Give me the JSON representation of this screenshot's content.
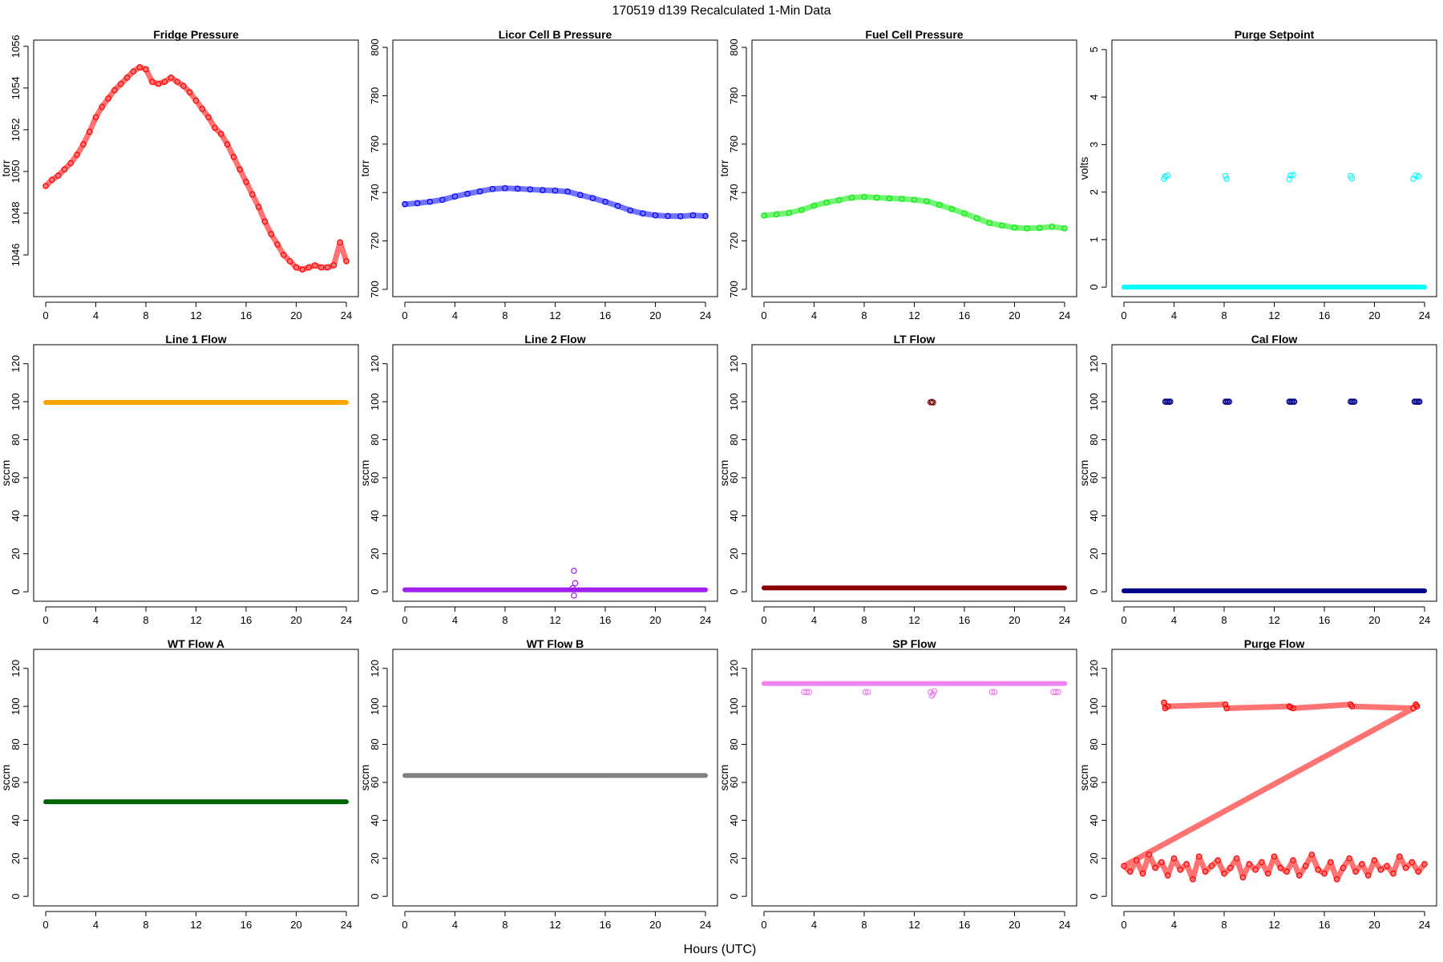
{
  "figure": {
    "title": "170519   d139   Recalculated 1-Min Data",
    "xlabel": "Hours (UTC)"
  },
  "chart_data": [
    {
      "type": "scatter",
      "title": "Fridge Pressure",
      "ylabel": "torr",
      "color": "#ff0000",
      "xlim": [
        -0.96,
        24.96
      ],
      "ylim": [
        1044,
        1056.3
      ],
      "xticks": [
        0,
        4,
        8,
        12,
        16,
        20,
        24
      ],
      "yticks": [
        1046,
        1048,
        1050,
        1052,
        1054,
        1056
      ],
      "x": [
        0,
        0.5,
        1,
        1.5,
        2,
        2.5,
        3,
        3.5,
        4,
        4.5,
        5,
        5.5,
        6,
        6.5,
        7,
        7.5,
        8,
        8.5,
        9,
        9.5,
        10,
        10.5,
        11,
        11.5,
        12,
        12.5,
        13,
        13.5,
        14,
        14.5,
        15,
        15.5,
        16,
        16.5,
        17,
        17.5,
        18,
        18.5,
        19,
        19.5,
        20,
        20.5,
        21,
        21.5,
        22,
        22.5,
        23,
        23.5,
        24
      ],
      "values": [
        1049.3,
        1049.6,
        1049.8,
        1050.1,
        1050.4,
        1050.8,
        1051.3,
        1051.9,
        1052.6,
        1053.1,
        1053.5,
        1053.9,
        1054.2,
        1054.5,
        1054.8,
        1055.0,
        1054.9,
        1054.3,
        1054.2,
        1054.3,
        1054.5,
        1054.3,
        1054.1,
        1053.8,
        1053.4,
        1053.0,
        1052.6,
        1052.1,
        1051.8,
        1051.3,
        1050.7,
        1050.1,
        1049.5,
        1048.9,
        1048.3,
        1047.6,
        1047.0,
        1046.5,
        1046.0,
        1045.7,
        1045.4,
        1045.3,
        1045.4,
        1045.5,
        1045.4,
        1045.4,
        1045.5,
        1046.6,
        1045.7
      ]
    },
    {
      "type": "scatter",
      "title": "Licor Cell B Pressure",
      "ylabel": "torr",
      "color": "#0000ff",
      "xlim": [
        -0.96,
        24.96
      ],
      "ylim": [
        697,
        803
      ],
      "xticks": [
        0,
        4,
        8,
        12,
        16,
        20,
        24
      ],
      "yticks": [
        700,
        720,
        740,
        760,
        780,
        800
      ],
      "x": [
        0,
        1,
        2,
        3,
        4,
        5,
        6,
        7,
        8,
        9,
        10,
        11,
        12,
        13,
        14,
        15,
        16,
        17,
        18,
        19,
        20,
        21,
        22,
        23,
        24
      ],
      "values": [
        735.2,
        735.6,
        736.2,
        737.0,
        738.4,
        739.5,
        740.5,
        741.5,
        741.8,
        741.6,
        741.3,
        741.0,
        740.8,
        740.4,
        739.0,
        737.7,
        736.2,
        734.5,
        732.6,
        731.4,
        730.6,
        730.3,
        730.2,
        730.6,
        730.3
      ]
    },
    {
      "type": "scatter",
      "title": "Fuel Cell Pressure",
      "ylabel": "torr",
      "color": "#00ee00",
      "xlim": [
        -0.96,
        24.96
      ],
      "ylim": [
        697,
        803
      ],
      "xticks": [
        0,
        4,
        8,
        12,
        16,
        20,
        24
      ],
      "yticks": [
        700,
        720,
        740,
        760,
        780,
        800
      ],
      "x": [
        0,
        1,
        2,
        3,
        4,
        5,
        6,
        7,
        8,
        9,
        10,
        11,
        12,
        13,
        14,
        15,
        16,
        17,
        18,
        19,
        20,
        21,
        22,
        23,
        24
      ],
      "values": [
        730.5,
        731.0,
        731.6,
        732.8,
        734.6,
        735.9,
        736.9,
        737.9,
        738.2,
        737.9,
        737.6,
        737.4,
        737.0,
        736.4,
        734.9,
        733.2,
        731.4,
        729.4,
        727.4,
        726.4,
        725.5,
        725.2,
        725.4,
        725.9,
        725.2
      ]
    },
    {
      "type": "scatter",
      "title": "Purge Setpoint",
      "ylabel": "volts",
      "color": "#00ffff",
      "xlim": [
        -0.96,
        24.96
      ],
      "ylim": [
        -0.2,
        5.2
      ],
      "xticks": [
        0,
        4,
        8,
        12,
        16,
        20,
        24
      ],
      "yticks": [
        0,
        1,
        2,
        3,
        4,
        5
      ],
      "baseline": 0,
      "baseline_range": [
        0,
        24
      ],
      "x": [
        3.2,
        3.3,
        3.5,
        8.1,
        8.2,
        13.2,
        13.3,
        13.5,
        18.1,
        18.2,
        23.1,
        23.3,
        23.5
      ],
      "values": [
        2.28,
        2.33,
        2.35,
        2.34,
        2.28,
        2.27,
        2.35,
        2.36,
        2.34,
        2.29,
        2.28,
        2.35,
        2.33
      ]
    },
    {
      "type": "scatter",
      "title": "Line 1 Flow",
      "ylabel": "sccm",
      "color": "#ffa500",
      "xlim": [
        -0.96,
        24.96
      ],
      "ylim": [
        -5,
        130
      ],
      "xticks": [
        0,
        4,
        8,
        12,
        16,
        20,
        24
      ],
      "yticks": [
        0,
        20,
        40,
        60,
        80,
        100,
        120
      ],
      "baseline": 99.6,
      "baseline_range": [
        0,
        24
      ],
      "x": [],
      "values": []
    },
    {
      "type": "scatter",
      "title": "Line 2 Flow",
      "ylabel": "sccm",
      "color": "#a020f0",
      "xlim": [
        -0.96,
        24.96
      ],
      "ylim": [
        -5,
        130
      ],
      "xticks": [
        0,
        4,
        8,
        12,
        16,
        20,
        24
      ],
      "yticks": [
        0,
        20,
        40,
        60,
        80,
        100,
        120
      ],
      "baseline": 1,
      "baseline_range": [
        0,
        24
      ],
      "x": [
        13.5,
        13.6,
        13.4,
        13.5
      ],
      "values": [
        11,
        4.5,
        2,
        -2
      ]
    },
    {
      "type": "scatter",
      "title": "LT Flow",
      "ylabel": "sccm",
      "color": "#8b0000",
      "xlim": [
        -0.96,
        24.96
      ],
      "ylim": [
        -5,
        130
      ],
      "xticks": [
        0,
        4,
        8,
        12,
        16,
        20,
        24
      ],
      "yticks": [
        0,
        20,
        40,
        60,
        80,
        100,
        120
      ],
      "baseline": 2,
      "baseline_range": [
        0,
        24
      ],
      "x": [
        13.3,
        13.4,
        13.5
      ],
      "values": [
        99.7,
        99.9,
        99.6
      ]
    },
    {
      "type": "scatter",
      "title": "Cal Flow",
      "ylabel": "sccm",
      "color": "#00008b",
      "xlim": [
        -0.96,
        24.96
      ],
      "ylim": [
        -5,
        130
      ],
      "xticks": [
        0,
        4,
        8,
        12,
        16,
        20,
        24
      ],
      "yticks": [
        0,
        20,
        40,
        60,
        80,
        100,
        120
      ],
      "baseline": 0.5,
      "baseline_range": [
        0,
        24
      ],
      "x": [
        3.3,
        3.4,
        3.5,
        3.6,
        3.7,
        8.1,
        8.2,
        8.3,
        8.4,
        13.2,
        13.3,
        13.4,
        13.5,
        13.6,
        18.1,
        18.2,
        18.3,
        18.4,
        23.2,
        23.3,
        23.4,
        23.5,
        23.6
      ],
      "values": [
        100,
        100,
        100,
        100,
        100,
        100,
        100,
        100,
        100,
        100,
        100,
        100,
        100,
        100,
        100,
        100,
        100,
        100,
        100,
        100,
        100,
        100,
        100
      ]
    },
    {
      "type": "scatter",
      "title": "WT Flow A",
      "ylabel": "sccm",
      "color": "#006400",
      "xlim": [
        -0.96,
        24.96
      ],
      "ylim": [
        -5,
        130
      ],
      "xticks": [
        0,
        4,
        8,
        12,
        16,
        20,
        24
      ],
      "yticks": [
        0,
        20,
        40,
        60,
        80,
        100,
        120
      ],
      "baseline": 49.8,
      "baseline_range": [
        0,
        24
      ],
      "x": [],
      "values": []
    },
    {
      "type": "scatter",
      "title": "WT Flow B",
      "ylabel": "sccm",
      "color": "#808080",
      "xlim": [
        -0.96,
        24.96
      ],
      "ylim": [
        -5,
        130
      ],
      "xticks": [
        0,
        4,
        8,
        12,
        16,
        20,
        24
      ],
      "yticks": [
        0,
        20,
        40,
        60,
        80,
        100,
        120
      ],
      "baseline": 63.6,
      "baseline_range": [
        0,
        24
      ],
      "x": [],
      "values": []
    },
    {
      "type": "scatter",
      "title": "SP Flow",
      "ylabel": "sccm",
      "color": "#ee82ee",
      "xlim": [
        -0.96,
        24.96
      ],
      "ylim": [
        -5,
        130
      ],
      "xticks": [
        0,
        4,
        8,
        12,
        16,
        20,
        24
      ],
      "yticks": [
        0,
        20,
        40,
        60,
        80,
        100,
        120
      ],
      "baseline": 112,
      "baseline_range": [
        0,
        24
      ],
      "x": [
        3.2,
        3.4,
        3.6,
        8.1,
        8.3,
        13.3,
        13.4,
        13.5,
        13.6,
        18.2,
        18.4,
        23.1,
        23.3,
        23.5
      ],
      "values": [
        107.5,
        107.5,
        107.5,
        107.5,
        107.5,
        107.5,
        105.5,
        106.5,
        108,
        107.5,
        107.5,
        107.5,
        107.5,
        107.5
      ]
    },
    {
      "type": "scatter",
      "title": "Purge Flow",
      "ylabel": "sccm",
      "color": "#ff0000",
      "xlim": [
        -0.96,
        24.96
      ],
      "ylim": [
        -5,
        130
      ],
      "xticks": [
        0,
        4,
        8,
        12,
        16,
        20,
        24
      ],
      "yticks": [
        0,
        20,
        40,
        60,
        80,
        100,
        120
      ],
      "x": [
        3.2,
        3.3,
        3.5,
        8.1,
        8.2,
        13.2,
        13.3,
        13.5,
        18.1,
        18.2,
        23.1,
        23.3,
        23.4,
        0,
        0.5,
        1,
        1.5,
        2,
        2.5,
        3,
        3.5,
        4,
        4.5,
        5,
        5.5,
        6,
        6.5,
        7,
        7.5,
        8,
        8.5,
        9,
        9.5,
        10,
        10.5,
        11,
        11.5,
        12,
        12.5,
        13,
        13.5,
        14,
        14.5,
        15,
        15.5,
        16,
        16.5,
        17,
        17.5,
        18,
        18.5,
        19,
        19.5,
        20,
        20.5,
        21,
        21.5,
        22,
        22.5,
        23,
        23.5,
        24
      ],
      "values": [
        102,
        99,
        100,
        101,
        99,
        100,
        99.5,
        99,
        101,
        100,
        99,
        101,
        100,
        16,
        13,
        19,
        12,
        22,
        15,
        18,
        11,
        20,
        14,
        17,
        9,
        21,
        13,
        16,
        19,
        12,
        15,
        20,
        10,
        17,
        14,
        18,
        12,
        21,
        15,
        13,
        19,
        11,
        16,
        22,
        14,
        12,
        18,
        9,
        15,
        20,
        13,
        17,
        11,
        19,
        14,
        16,
        12,
        21,
        15,
        18,
        13,
        17
      ]
    }
  ]
}
